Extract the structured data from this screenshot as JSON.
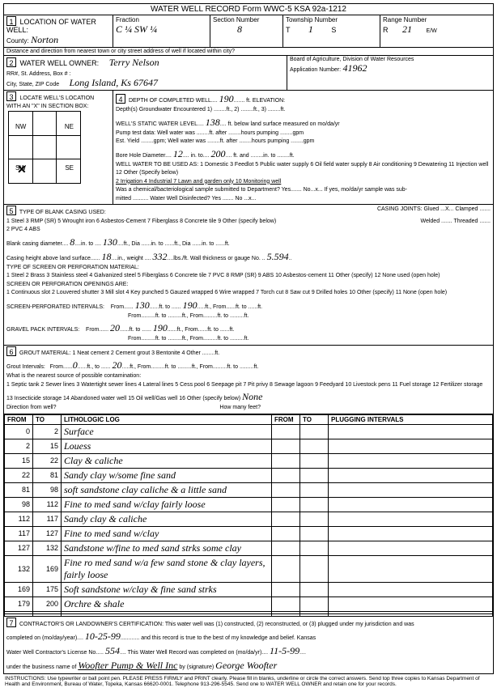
{
  "header": "WATER WELL RECORD     Form WWC-5     KSA 92a-1212",
  "s1": {
    "title": "LOCATION OF WATER WELL:",
    "county_label": "County:",
    "county": "Norton",
    "fraction_label": "Fraction",
    "fraction": "C ¼ SW ¼",
    "section_label": "Section Number",
    "section": "8",
    "township_label": "Township Number",
    "township_t": "T",
    "township": "1",
    "township_s": "S",
    "range_label": "Range Number",
    "range_r": "R",
    "range": "21",
    "range_ew": "E/W",
    "distance": "Distance and direction from nearest town or city street address of well if located within city?"
  },
  "s2": {
    "title": "WATER WELL OWNER:",
    "name": "Terry Nelson",
    "addr_label": "RR#, St. Address, Box # :",
    "city_label": "City, State, ZIP Code",
    "city": "Long Island, Ks 67647",
    "board": "Board of Agriculture, Division of Water Resources",
    "app_label": "Application Number:",
    "app": "41962"
  },
  "s3": {
    "title": "LOCATE WELL'S LOCATION WITH AN \"X\" IN SECTION BOX:",
    "nw": "NW",
    "ne": "NE",
    "sw": "SW",
    "se": "SE",
    "mile_left": "← 1 Mile →",
    "mile_bottom": "← 1 Mile →"
  },
  "s4": {
    "title": "DEPTH OF COMPLETED WELL",
    "depth": "190",
    "depth_unit": "ft. ELEVATION:",
    "groundwater": "Depth(s) Groundwater Encountered   1) ........ft.,  2) ........ft.,  3) ........ft.",
    "static_label": "WELL'S STATIC WATER LEVEL",
    "static": "138",
    "static_rest": "ft. below land surface measured on mo/da/yr",
    "pump": "Pump test data:   Well water was ........ft. after ........hours pumping ........gpm",
    "est": "Est. Yield ........gpm;  Well water was ........ft. after ........hours pumping ........gpm",
    "bore_label": "Bore Hole Diameter",
    "bore1": "12",
    "bore_mid": "in. to",
    "bore2": "200",
    "bore_end": "ft. and ........in. to ........ft.",
    "use_label": "WELL WATER TO BE USED AS:",
    "use_opts": "1 Domestic   3 Feedlot   5 Public water supply   6 Oil field water supply   8 Air conditioning   9 Dewatering   11 Injection well   12 Other (Specify below)",
    "use_row2": "2 Irrigation   4 Industrial   7 Lawn and garden only   10 Monitoring well",
    "chem": "Was a chemical/bacteriological sample submitted to Department?  Yes....... No...x... If yes, mo/da/yr sample was sub-",
    "disinfect": "mitted ..........   Water Well Disinfected?  Yes .......  No ...x..."
  },
  "s5": {
    "title": "TYPE OF BLANK CASING USED:",
    "opts": "1 Steel   3 RMP (SR)   5 Wrought iron   6 Asbestos-Cement   7 Fiberglass   8 Concrete tile   9 Other (specify below)",
    "opts2": "2 PVC   4 ABS",
    "joints": "CASING JOINTS:  Glued ...X... Clamped .......",
    "joints2": "Welded ....... Threaded .......",
    "diam_label": "Blank casing diameter",
    "diam": "8",
    "diam_to": "130",
    "height_label": "Casing height above land surface",
    "height": "18",
    "weight": "332",
    "gauge": "5.594",
    "screen_title": "TYPE OF SCREEN OR PERFORATION MATERIAL:",
    "screen_opts": "1 Steel   2 Brass   3 Stainless steel   4 Galvanized steel   5 Fiberglass   6 Concrete tile   7 PVC   8 RMP (SR)   9 ABS   10 Asbestos-cement   11 Other (specify)   12 None used (open hole)",
    "open_title": "SCREEN OR PERFORATION OPENINGS ARE:",
    "open_opts": "1 Continuous slot   2 Louvered shutter   3 Mill slot   4 Key punched   5 Gauzed wrapped   6 Wire wrapped   7 Torch cut   8 Saw cut   9 Drilled holes   10 Other (specify)   11 None (open hole)",
    "perf_label": "SCREEN-PERFORATED INTERVALS:",
    "perf_from": "130",
    "perf_to": "190",
    "gravel_label": "GRAVEL PACK INTERVALS:",
    "gravel_from": "20",
    "gravel_to": "190"
  },
  "s6": {
    "title": "GROUT MATERIAL:",
    "opts": "1 Neat cement   2 Cement grout   3 Bentonite   4 Other",
    "grout_from": "0",
    "grout_to": "20",
    "contam": "What is the nearest source of possible contamination:",
    "contam_opts": "1 Septic tank   2 Sewer lines   3 Watertight sewer lines   4 Lateral lines   5 Cess pool   6 Seepage pit   7 Pit privy   8 Sewage lagoon   9 Feedyard   10 Livestock pens   11 Fuel storage   12 Fertilizer storage   13 Insecticide storage   14 Abandoned water well   15 Oil well/Gas well   16 Other (specify below)",
    "none": "None",
    "direction": "Direction from well?",
    "howmany": "How many feet?"
  },
  "log": {
    "headers": [
      "FROM",
      "TO",
      "LITHOLOGIC LOG",
      "FROM",
      "TO",
      "PLUGGING INTERVALS"
    ],
    "rows": [
      [
        "0",
        "2",
        "Surface",
        "",
        "",
        ""
      ],
      [
        "2",
        "15",
        "Louess",
        "",
        "",
        ""
      ],
      [
        "15",
        "22",
        "Clay & caliche",
        "",
        "",
        ""
      ],
      [
        "22",
        "81",
        "Sandy clay w/some fine sand",
        "",
        "",
        ""
      ],
      [
        "81",
        "98",
        "soft sandstone clay caliche & a little sand",
        "",
        "",
        ""
      ],
      [
        "98",
        "112",
        "Fine to med sand w/clay fairly loose",
        "",
        "",
        ""
      ],
      [
        "112",
        "117",
        "Sandy clay & caliche",
        "",
        "",
        ""
      ],
      [
        "117",
        "127",
        "Fine to med sand w/clay",
        "",
        "",
        ""
      ],
      [
        "127",
        "132",
        "Sandstone w/fine to med sand strks some clay",
        "",
        "",
        ""
      ],
      [
        "132",
        "169",
        "Fine ro med sand w/a few sand stone & clay layers, fairly loose",
        "",
        "",
        ""
      ],
      [
        "169",
        "175",
        "Soft sandstone w/clay & fine sand strks",
        "",
        "",
        ""
      ],
      [
        "179",
        "200",
        "Orchre & shale",
        "",
        "",
        ""
      ],
      [
        "",
        "",
        "",
        "",
        "",
        ""
      ],
      [
        "",
        "",
        "",
        "",
        "",
        ""
      ]
    ]
  },
  "s7": {
    "title": "CONTRACTOR'S OR LANDOWNER'S CERTIFICATION:",
    "cert": "This water well was (1) constructed, (2) reconstructed, or (3) plugged under my jurisdiction and was",
    "completed_label": "completed on (mo/day/year)",
    "completed": "10-25-99",
    "cert2": "and this record is true to the best of my knowledge and belief. Kansas",
    "lic_label": "Water Well Contractor's License No.",
    "lic": "554",
    "rec_label": "This Water Well Record was completed on (mo/da/yr)",
    "rec_date": "11-5-99",
    "bus_label": "under the business name of",
    "bus": "Woofter Pump & Well Inc",
    "sig_label": "by (signature)",
    "sig": "George Woofter"
  },
  "footer": "INSTRUCTIONS: Use typewriter or ball point pen. PLEASE PRESS FIRMLY and PRINT clearly. Please fill in blanks, underline or circle the correct answers. Send top three copies to Kansas Department of Health and Environment, Bureau of Water, Topeka, Kansas 66620-0001. Telephone 913-296-5545. Send one to WATER WELL OWNER and retain one for your records."
}
